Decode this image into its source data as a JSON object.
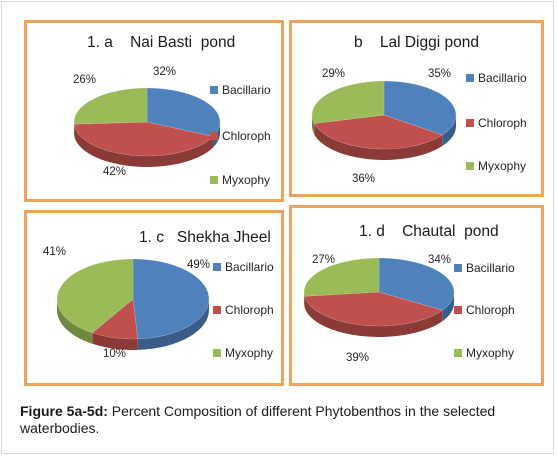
{
  "caption": {
    "label": "Figure 5a-5d:",
    "text": "Percent Composition of different Phytobenthos in the selected waterbodies."
  },
  "colors": {
    "Bacillario": "#4f81bd",
    "Chloroph": "#c0504d",
    "Myxophy": "#9bbb59"
  },
  "chart_data": [
    {
      "type": "pie",
      "title": "1. a    Nai Basti  pond",
      "categories": [
        "Bacillario",
        "Chloroph",
        "Myxophy"
      ],
      "values": [
        32,
        42,
        26
      ],
      "labels": [
        "32%",
        "42%",
        "26%"
      ],
      "legend": [
        "Bacillario",
        "Chloroph",
        "Myxophy"
      ],
      "legend_position": "right"
    },
    {
      "type": "pie",
      "title": "b    Lal Diggi pond",
      "categories": [
        "Bacillario",
        "Chloroph",
        "Myxophy"
      ],
      "values": [
        35,
        36,
        29
      ],
      "labels": [
        "35%",
        "36%",
        "29%"
      ],
      "legend": [
        "Bacillario",
        "Chloroph",
        "Myxophy"
      ],
      "legend_position": "right"
    },
    {
      "type": "pie",
      "title": "1. c   Shekha Jheel",
      "categories": [
        "Bacillario",
        "Chloroph",
        "Myxophy"
      ],
      "values": [
        49,
        10,
        41
      ],
      "labels": [
        "49%",
        "10%",
        "41%"
      ],
      "legend": [
        "Bacillario",
        "Chloroph",
        "Myxophy"
      ],
      "legend_position": "right"
    },
    {
      "type": "pie",
      "title": "1. d    Chautal  pond",
      "categories": [
        "Bacillario",
        "Chloroph",
        "Myxophy"
      ],
      "values": [
        34,
        39,
        27
      ],
      "labels": [
        "34%",
        "39%",
        "27%"
      ],
      "legend": [
        "Bacillario",
        "Chloroph",
        "Myxophy"
      ],
      "legend_position": "right"
    }
  ]
}
